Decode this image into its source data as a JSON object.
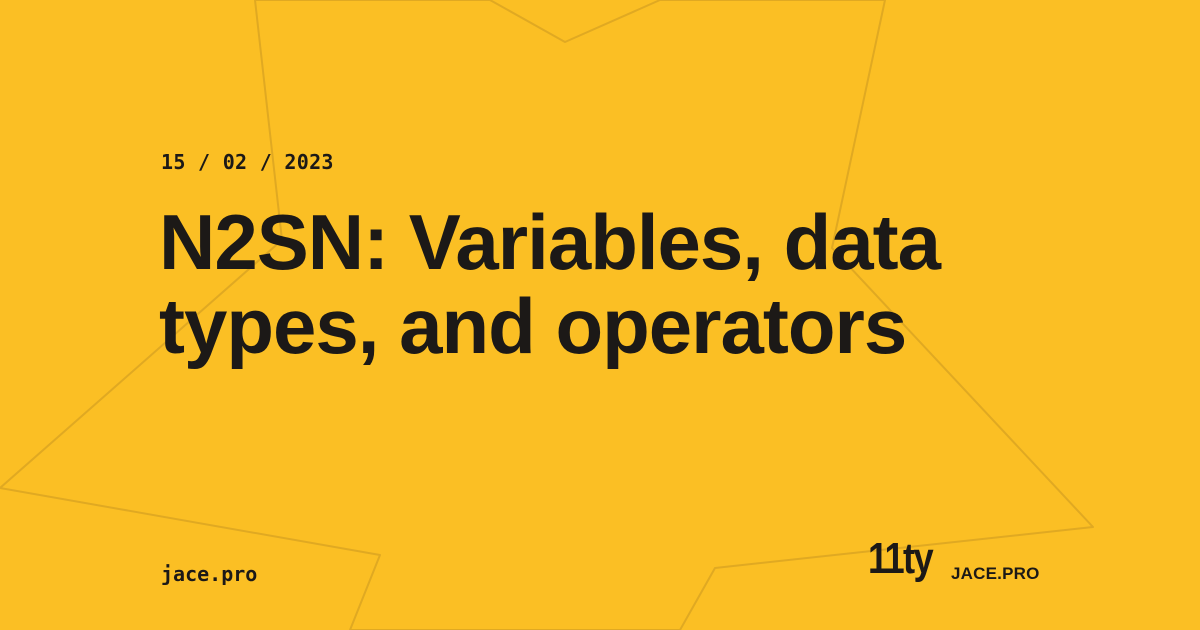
{
  "card": {
    "background_color": "#fbbf24",
    "text_color": "#1c1917",
    "star_line_color": "#e0a922"
  },
  "post": {
    "date": "15 / 02 / 2023",
    "title": "N2SN: Variables, data types, and operators"
  },
  "footer": {
    "site": "jace.pro",
    "logo_text": "11ty",
    "brand": "JACE.PRO"
  }
}
